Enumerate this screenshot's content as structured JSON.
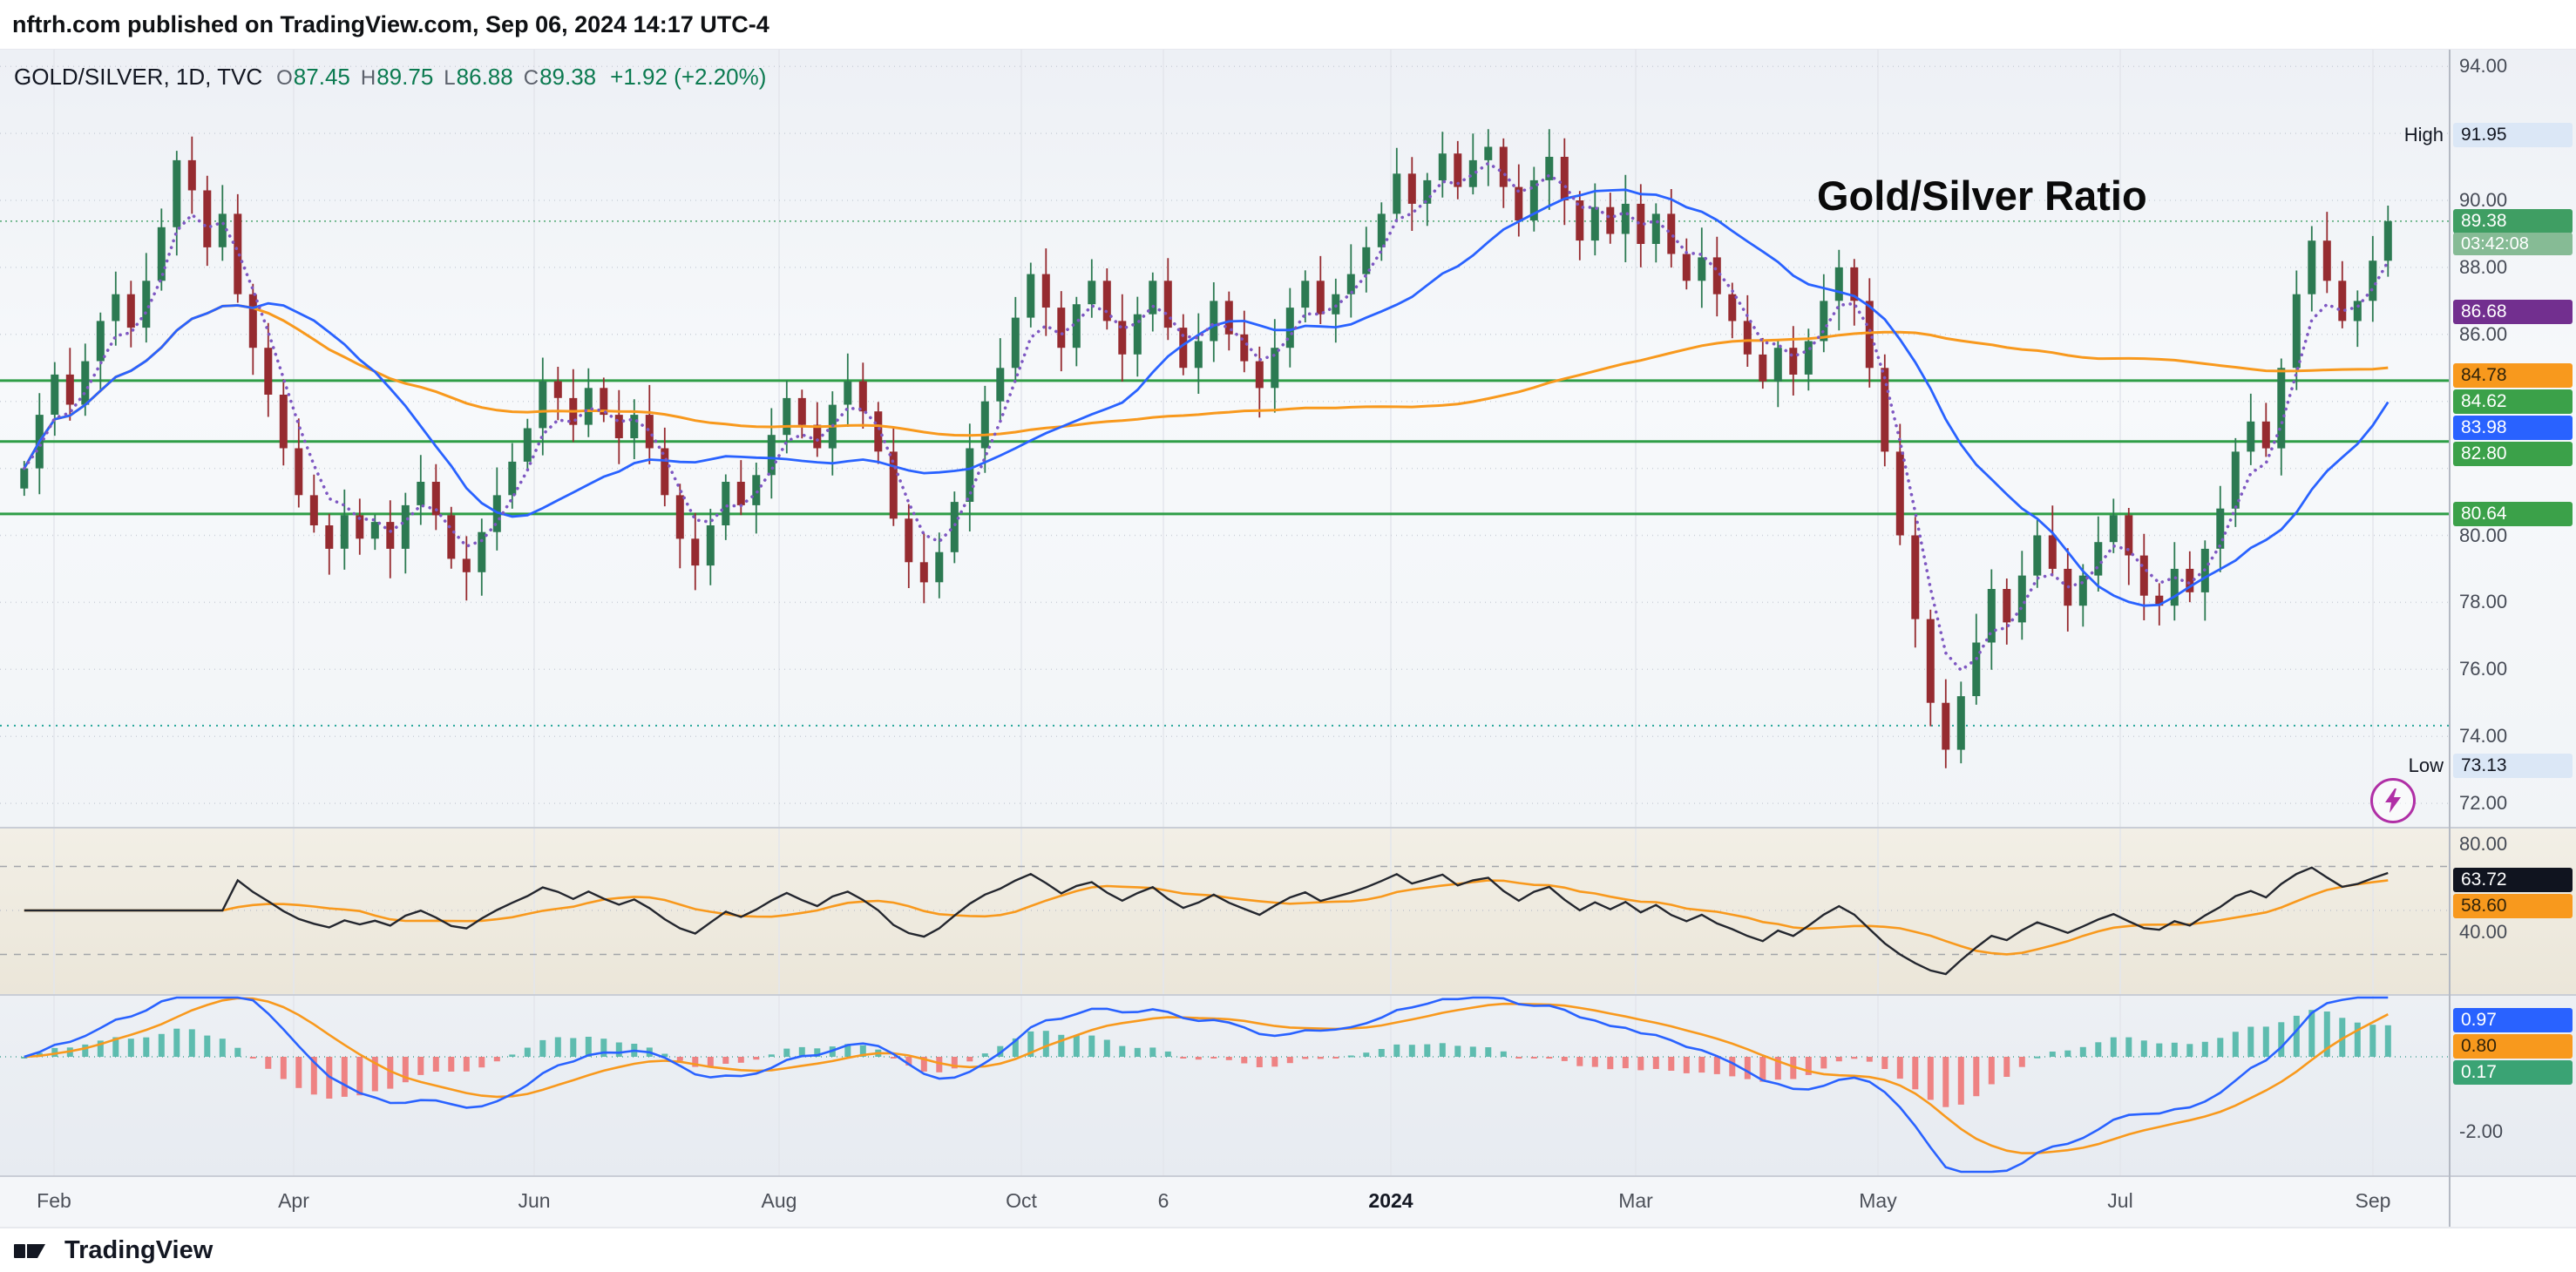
{
  "header": {
    "publish_line": "nftrh.com published on TradingView.com, Sep 06, 2024 14:17 UTC-4"
  },
  "legend": {
    "symbol": "GOLD/SILVER, 1D, TVC",
    "ohlc": [
      {
        "label": "O",
        "value": "87.45"
      },
      {
        "label": "H",
        "value": "89.75"
      },
      {
        "label": "L",
        "value": "86.88"
      },
      {
        "label": "C",
        "value": "89.38"
      }
    ],
    "change": "+1.92 (+2.20%)"
  },
  "overlay_title": "Gold/Silver Ratio",
  "footer": {
    "brand": "TradingView"
  },
  "chart_data": {
    "type": "candlestick",
    "symbol": "GOLD/SILVER",
    "timeframe": "1D",
    "exchange": "TVC",
    "ohlc_display": {
      "open": 87.45,
      "high": 89.75,
      "low": 86.88,
      "close": 89.38,
      "change": "+1.92 (+2.20%)"
    },
    "range_high": 91.95,
    "range_low": 73.13,
    "countdown": "03:42:08",
    "style": {
      "up_color": "#2c7a52",
      "down_color": "#962b30",
      "fast_ma_color": "#7e57c2",
      "mid_ma_color": "#2962ff",
      "slow_ma_color": "#f8991d",
      "level_color": "#2f9e47",
      "current_price_color": "#3f9e63"
    },
    "x_axis": {
      "ticks": [
        {
          "label": "Feb",
          "f": 0.022,
          "major": false
        },
        {
          "label": "Apr",
          "f": 0.12,
          "major": false
        },
        {
          "label": "Jun",
          "f": 0.218,
          "major": false
        },
        {
          "label": "Aug",
          "f": 0.318,
          "major": false
        },
        {
          "label": "Oct",
          "f": 0.417,
          "major": false
        },
        {
          "label": "6",
          "f": 0.475,
          "major": false
        },
        {
          "label": "2024",
          "f": 0.568,
          "major": true
        },
        {
          "label": "Mar",
          "f": 0.668,
          "major": false
        },
        {
          "label": "May",
          "f": 0.767,
          "major": false
        },
        {
          "label": "Jul",
          "f": 0.866,
          "major": false
        },
        {
          "label": "Sep",
          "f": 0.969,
          "major": false
        }
      ]
    },
    "price_axis": {
      "range": [
        71.3,
        94.5
      ],
      "gridlines": [
        94,
        92,
        90,
        88,
        86,
        84,
        82,
        80,
        78,
        76,
        74,
        72
      ],
      "labels": [
        "94.00",
        "90.00",
        "88.00",
        "86.00",
        "80.00",
        "78.00",
        "76.00",
        "74.00",
        "72.00"
      ],
      "tags": [
        {
          "prefix": "High",
          "text": "91.95",
          "value": 91.95,
          "bg": "#dbe7f6",
          "fg": "#131722"
        },
        {
          "text": "89.38",
          "value": 89.38,
          "bg": "#3f9e63",
          "fg": "#ffffff"
        },
        {
          "text": "03:42:08",
          "follow": true,
          "small": true,
          "bg": "#86bb95",
          "fg": "#ffffff"
        },
        {
          "text": "86.68",
          "value": 86.68,
          "bg": "#722f8f",
          "fg": "#ffffff"
        },
        {
          "text": "84.78",
          "value": 84.78,
          "bg": "#f8991d",
          "fg": "#30230a"
        },
        {
          "text": "84.62",
          "value": 84.62,
          "bg": "#3ba149",
          "fg": "#ffffff"
        },
        {
          "text": "83.98",
          "value": 83.98,
          "bg": "#2962ff",
          "fg": "#ffffff"
        },
        {
          "text": "82.80",
          "value": 82.8,
          "bg": "#3ba149",
          "fg": "#ffffff"
        },
        {
          "text": "80.64",
          "value": 80.64,
          "bg": "#3ba149",
          "fg": "#ffffff"
        },
        {
          "prefix": "Low",
          "text": "73.13",
          "value": 73.13,
          "bg": "#dbe7f6",
          "fg": "#131722"
        }
      ]
    },
    "levels": [
      {
        "value": 84.62,
        "color": "#2f9e47",
        "width": 3,
        "dash": ""
      },
      {
        "value": 82.8,
        "color": "#2f9e47",
        "width": 3,
        "dash": ""
      },
      {
        "value": 80.64,
        "color": "#2f9e47",
        "width": 3,
        "dash": ""
      },
      {
        "value": 74.32,
        "color": "#26a69a",
        "width": 2,
        "dash": "2 6"
      }
    ],
    "closes": [
      82.0,
      83.6,
      84.8,
      83.9,
      85.2,
      86.4,
      87.2,
      86.2,
      87.6,
      89.2,
      91.2,
      90.3,
      88.6,
      89.6,
      87.2,
      85.6,
      84.2,
      82.6,
      81.2,
      80.3,
      79.6,
      80.6,
      79.9,
      80.4,
      79.6,
      80.9,
      81.6,
      80.6,
      79.3,
      78.9,
      80.1,
      81.2,
      82.2,
      83.2,
      84.6,
      84.1,
      83.3,
      84.4,
      83.6,
      82.9,
      83.6,
      82.6,
      81.2,
      79.9,
      79.1,
      80.3,
      81.6,
      80.9,
      81.8,
      83.0,
      84.1,
      83.3,
      82.6,
      83.9,
      84.6,
      83.7,
      82.5,
      80.5,
      79.2,
      78.6,
      79.5,
      81.0,
      82.6,
      84.0,
      85.0,
      86.5,
      87.8,
      86.8,
      85.6,
      86.9,
      87.6,
      86.4,
      85.4,
      86.6,
      87.6,
      86.2,
      85.0,
      85.8,
      87.0,
      86.0,
      85.2,
      84.4,
      85.6,
      86.8,
      87.6,
      86.6,
      87.2,
      87.8,
      88.6,
      89.6,
      90.8,
      89.9,
      90.6,
      91.4,
      90.4,
      91.2,
      91.6,
      90.4,
      89.4,
      90.6,
      91.3,
      90.0,
      88.8,
      89.8,
      89.0,
      89.9,
      88.7,
      89.6,
      88.4,
      87.6,
      88.3,
      87.2,
      86.4,
      85.4,
      84.6,
      85.6,
      84.8,
      85.8,
      87.0,
      88.0,
      87.0,
      85.0,
      82.5,
      80.0,
      77.5,
      75.0,
      73.6,
      75.2,
      76.8,
      78.4,
      77.4,
      78.8,
      80.0,
      79.0,
      77.9,
      78.8,
      79.8,
      80.6,
      79.4,
      78.2,
      77.9,
      79.0,
      78.3,
      79.6,
      80.8,
      82.5,
      83.4,
      82.6,
      85.0,
      87.2,
      88.8,
      87.6,
      86.4,
      87.0,
      88.2,
      89.38
    ],
    "rsi_panel": {
      "range": [
        12,
        88
      ],
      "bands": [
        70,
        30
      ],
      "mid_band": 50,
      "labels": [
        {
          "text": "80.00",
          "value": 80
        },
        {
          "text": "40.00",
          "value": 40
        }
      ],
      "line_color": "#23262e",
      "signal_color": "#f8991d",
      "tags": [
        {
          "text": "63.72",
          "value": 63.72,
          "bg": "#10141f",
          "fg": "#ffffff"
        },
        {
          "text": "58.60",
          "value": 58.6,
          "bg": "#f8991d",
          "fg": "#30230a"
        }
      ]
    },
    "macd_panel": {
      "labels": [
        {
          "text": "-2.00",
          "value": -2
        }
      ],
      "macd_color": "#2962ff",
      "signal_color": "#f8991d",
      "hist_pos_color": "#45b3a2",
      "hist_neg_color": "#ef6e6e",
      "tags": [
        {
          "text": "0.97",
          "value": 0.97,
          "bg": "#2962ff",
          "fg": "#ffffff"
        },
        {
          "text": "0.80",
          "value": 0.8,
          "bg": "#f8991d",
          "fg": "#30230a"
        },
        {
          "text": "0.17",
          "value": 0.17,
          "bg": "#3aa374",
          "fg": "#ffffff"
        }
      ]
    }
  }
}
